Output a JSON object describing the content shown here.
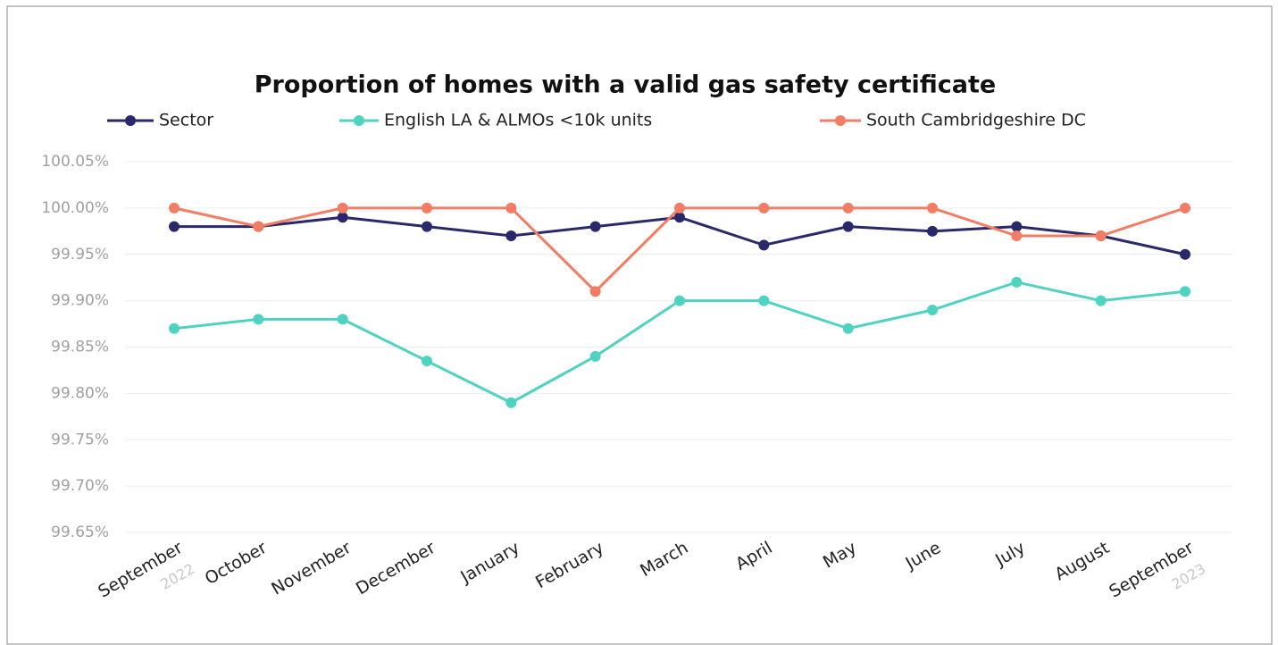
{
  "chart_data": {
    "type": "line",
    "title": "Proportion of homes with a valid gas safety certificate",
    "categories": [
      "September",
      "October",
      "November",
      "December",
      "January",
      "February",
      "March",
      "April",
      "May",
      "June",
      "July",
      "August",
      "September"
    ],
    "category_sublabels": [
      "2022",
      null,
      null,
      null,
      null,
      null,
      null,
      null,
      null,
      null,
      null,
      null,
      "2023"
    ],
    "series": [
      {
        "name": "Sector",
        "color": "#29286a",
        "values": [
          99.98,
          99.98,
          99.99,
          99.98,
          99.97,
          99.98,
          99.99,
          99.96,
          99.98,
          99.975,
          99.98,
          99.97,
          99.95
        ]
      },
      {
        "name": "English LA & ALMOs <10k units",
        "color": "#4fd3c1",
        "values": [
          99.87,
          99.88,
          99.88,
          99.835,
          99.79,
          99.84,
          99.9,
          99.9,
          99.87,
          99.89,
          99.92,
          99.9,
          99.91
        ]
      },
      {
        "name": "South Cambridgeshire DC",
        "color": "#f27c64",
        "values": [
          100.0,
          99.98,
          100.0,
          100.0,
          100.0,
          99.91,
          100.0,
          100.0,
          100.0,
          100.0,
          99.97,
          99.97,
          100.0
        ]
      }
    ],
    "ylim": [
      99.65,
      100.05
    ],
    "yticks": [
      {
        "value": 99.65,
        "label": "99.65%"
      },
      {
        "value": 99.7,
        "label": "99.70%"
      },
      {
        "value": 99.75,
        "label": "99.75%"
      },
      {
        "value": 99.8,
        "label": "99.80%"
      },
      {
        "value": 99.85,
        "label": "99.85%"
      },
      {
        "value": 99.9,
        "label": "99.90%"
      },
      {
        "value": 99.95,
        "label": "99.95%"
      },
      {
        "value": 100.0,
        "label": "100.00%"
      },
      {
        "value": 100.05,
        "label": "100.05%"
      }
    ],
    "grid": true
  }
}
